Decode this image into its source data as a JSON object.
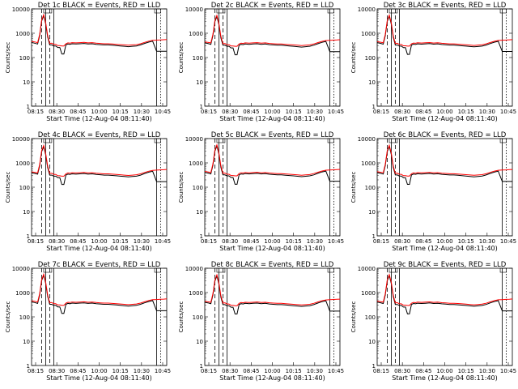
{
  "shared": {
    "ylabel": "Counts/sec",
    "xlabel": "Start Time (12-Aug-04 08:11:40)",
    "xticks": [
      "08:15",
      "08:30",
      "08:45",
      "10:00",
      "10:15",
      "10:30",
      "10:45"
    ],
    "yticks": [
      1,
      10,
      100,
      1000,
      10000
    ],
    "ylim": [
      1,
      10000
    ],
    "y_scale": "log",
    "colors": {
      "events": "#000000",
      "lld": "#ff0000"
    },
    "times_min": [
      0,
      3,
      6,
      8,
      10,
      12,
      14,
      16,
      18,
      20,
      22,
      24,
      26,
      28,
      30,
      32,
      34,
      36,
      38,
      40,
      44,
      48,
      52,
      56,
      60,
      64,
      68,
      72,
      76,
      80,
      84,
      88,
      92,
      96,
      100,
      104,
      108,
      112,
      116,
      120,
      124,
      128,
      131,
      134
    ]
  },
  "chart_data": [
    {
      "type": "line",
      "title": "Det 1c BLACK = Events, RED = LLD",
      "series": [
        {
          "name": "BLACK = Events",
          "color": "#000000",
          "values": [
            420,
            390,
            360,
            800,
            3200,
            5200,
            2500,
            700,
            330,
            330,
            300,
            300,
            260,
            260,
            140,
            140,
            330,
            360,
            350,
            370,
            360,
            370,
            380,
            360,
            370,
            350,
            340,
            330,
            330,
            320,
            310,
            300,
            290,
            280,
            290,
            300,
            330,
            380,
            430,
            470,
            180,
            180,
            180,
            180
          ]
        },
        {
          "name": "RED = LLD",
          "color": "#ff0000",
          "values": [
            460,
            440,
            410,
            900,
            3500,
            5800,
            2800,
            800,
            380,
            390,
            350,
            350,
            310,
            310,
            300,
            300,
            370,
            400,
            390,
            410,
            400,
            410,
            420,
            400,
            410,
            390,
            380,
            370,
            370,
            360,
            350,
            340,
            330,
            320,
            330,
            340,
            370,
            420,
            470,
            510,
            520,
            530,
            540,
            550
          ]
        }
      ]
    },
    {
      "type": "line",
      "title": "Det 2c BLACK = Events, RED = LLD",
      "series": [
        {
          "name": "BLACK = Events",
          "color": "#000000",
          "values": [
            400,
            380,
            350,
            780,
            3000,
            4800,
            2300,
            650,
            320,
            320,
            290,
            290,
            250,
            250,
            130,
            130,
            320,
            350,
            340,
            360,
            350,
            360,
            370,
            350,
            360,
            340,
            330,
            320,
            320,
            310,
            300,
            290,
            280,
            270,
            280,
            290,
            320,
            370,
            420,
            460,
            175,
            175,
            175,
            175
          ]
        },
        {
          "name": "RED = LLD",
          "color": "#ff0000",
          "values": [
            440,
            420,
            400,
            880,
            3300,
            5400,
            2600,
            760,
            370,
            380,
            340,
            340,
            300,
            300,
            290,
            290,
            360,
            390,
            380,
            400,
            390,
            400,
            410,
            390,
            400,
            380,
            370,
            360,
            360,
            350,
            340,
            330,
            320,
            310,
            320,
            330,
            360,
            410,
            460,
            500,
            510,
            520,
            530,
            540
          ]
        }
      ]
    },
    {
      "type": "line",
      "title": "Det 3c BLACK = Events, RED = LLD",
      "series": [
        {
          "name": "BLACK = Events",
          "color": "#000000",
          "values": [
            410,
            385,
            355,
            790,
            3100,
            5000,
            2400,
            680,
            325,
            325,
            295,
            295,
            255,
            255,
            135,
            135,
            325,
            355,
            345,
            365,
            355,
            365,
            375,
            355,
            365,
            345,
            335,
            325,
            325,
            315,
            305,
            295,
            285,
            275,
            285,
            295,
            325,
            375,
            425,
            465,
            178,
            178,
            178,
            178
          ]
        },
        {
          "name": "RED = LLD",
          "color": "#ff0000",
          "values": [
            450,
            430,
            405,
            890,
            3400,
            5600,
            2700,
            780,
            375,
            385,
            345,
            345,
            305,
            305,
            295,
            295,
            365,
            395,
            385,
            405,
            395,
            405,
            415,
            395,
            405,
            385,
            375,
            365,
            365,
            355,
            345,
            335,
            325,
            315,
            325,
            335,
            365,
            415,
            465,
            505,
            515,
            525,
            535,
            545
          ]
        }
      ]
    },
    {
      "type": "line",
      "title": "Det 4c BLACK = Events, RED = LLD",
      "series": [
        {
          "name": "BLACK = Events",
          "color": "#000000",
          "values": [
            390,
            370,
            345,
            760,
            2900,
            4600,
            2200,
            640,
            315,
            315,
            285,
            285,
            245,
            245,
            130,
            130,
            315,
            345,
            335,
            355,
            345,
            355,
            365,
            345,
            355,
            335,
            325,
            315,
            315,
            305,
            295,
            285,
            275,
            265,
            275,
            285,
            315,
            365,
            415,
            455,
            170,
            170,
            170,
            170
          ]
        },
        {
          "name": "RED = LLD",
          "color": "#ff0000",
          "values": [
            430,
            410,
            390,
            860,
            3200,
            5200,
            2500,
            740,
            365,
            375,
            335,
            335,
            295,
            295,
            285,
            285,
            355,
            385,
            375,
            395,
            385,
            395,
            405,
            385,
            395,
            375,
            365,
            355,
            355,
            345,
            335,
            325,
            315,
            305,
            315,
            325,
            355,
            405,
            455,
            495,
            505,
            515,
            525,
            535
          ]
        }
      ]
    },
    {
      "type": "line",
      "title": "Det 5c BLACK = Events, RED = LLD",
      "series": [
        {
          "name": "BLACK = Events",
          "color": "#000000",
          "values": [
            405,
            382,
            352,
            785,
            3050,
            4900,
            2350,
            660,
            322,
            322,
            292,
            292,
            252,
            252,
            132,
            132,
            322,
            352,
            342,
            362,
            352,
            362,
            372,
            352,
            362,
            342,
            332,
            322,
            322,
            312,
            302,
            292,
            282,
            272,
            282,
            292,
            322,
            372,
            422,
            462,
            176,
            176,
            176,
            176
          ]
        },
        {
          "name": "RED = LLD",
          "color": "#ff0000",
          "values": [
            445,
            425,
            402,
            885,
            3350,
            5500,
            2650,
            770,
            372,
            382,
            342,
            342,
            302,
            302,
            292,
            292,
            362,
            392,
            382,
            402,
            392,
            402,
            412,
            392,
            402,
            382,
            372,
            362,
            362,
            352,
            342,
            332,
            322,
            312,
            322,
            332,
            362,
            412,
            462,
            502,
            512,
            522,
            532,
            542
          ]
        }
      ]
    },
    {
      "type": "line",
      "title": "Det 6c BLACK = Events, RED = LLD",
      "series": [
        {
          "name": "BLACK = Events",
          "color": "#000000",
          "values": [
            395,
            375,
            348,
            770,
            2950,
            4700,
            2250,
            645,
            318,
            318,
            288,
            288,
            248,
            248,
            131,
            131,
            318,
            348,
            338,
            358,
            348,
            358,
            368,
            348,
            358,
            338,
            328,
            318,
            318,
            308,
            298,
            288,
            278,
            268,
            278,
            288,
            318,
            368,
            418,
            458,
            172,
            172,
            172,
            172
          ]
        },
        {
          "name": "RED = LLD",
          "color": "#ff0000",
          "values": [
            435,
            415,
            395,
            870,
            3250,
            5300,
            2550,
            750,
            368,
            378,
            338,
            338,
            298,
            298,
            288,
            288,
            358,
            388,
            378,
            398,
            388,
            398,
            408,
            388,
            398,
            378,
            368,
            358,
            358,
            348,
            338,
            328,
            318,
            308,
            318,
            328,
            358,
            408,
            458,
            498,
            508,
            518,
            528,
            538
          ]
        }
      ]
    },
    {
      "type": "line",
      "title": "Det 7c BLACK = Events, RED = LLD",
      "series": [
        {
          "name": "BLACK = Events",
          "color": "#000000",
          "values": [
            415,
            388,
            358,
            795,
            3150,
            5100,
            2450,
            690,
            328,
            328,
            298,
            298,
            258,
            258,
            138,
            138,
            328,
            358,
            348,
            368,
            358,
            368,
            378,
            358,
            368,
            348,
            338,
            328,
            328,
            318,
            308,
            298,
            288,
            278,
            288,
            298,
            328,
            378,
            428,
            468,
            179,
            179,
            179,
            179
          ]
        },
        {
          "name": "RED = LLD",
          "color": "#ff0000",
          "values": [
            455,
            435,
            408,
            895,
            3450,
            5700,
            2750,
            790,
            378,
            388,
            348,
            348,
            308,
            308,
            298,
            298,
            368,
            398,
            388,
            408,
            398,
            408,
            418,
            398,
            408,
            388,
            378,
            368,
            368,
            358,
            348,
            338,
            328,
            318,
            328,
            338,
            368,
            418,
            468,
            508,
            518,
            528,
            538,
            548
          ]
        }
      ]
    },
    {
      "type": "line",
      "title": "Det 8c BLACK = Events, RED = LLD",
      "series": [
        {
          "name": "BLACK = Events",
          "color": "#000000",
          "values": [
            398,
            378,
            350,
            775,
            2980,
            4750,
            2280,
            648,
            319,
            319,
            289,
            289,
            249,
            249,
            132,
            132,
            319,
            349,
            339,
            359,
            349,
            359,
            369,
            349,
            359,
            339,
            329,
            319,
            319,
            309,
            299,
            289,
            279,
            269,
            279,
            289,
            319,
            369,
            419,
            459,
            173,
            173,
            173,
            173
          ]
        },
        {
          "name": "RED = LLD",
          "color": "#ff0000",
          "values": [
            438,
            418,
            398,
            875,
            3280,
            5350,
            2580,
            755,
            369,
            379,
            339,
            339,
            299,
            299,
            289,
            289,
            359,
            389,
            379,
            399,
            389,
            399,
            409,
            389,
            399,
            379,
            369,
            359,
            359,
            349,
            339,
            329,
            319,
            309,
            319,
            329,
            359,
            409,
            459,
            499,
            509,
            519,
            529,
            539
          ]
        }
      ]
    },
    {
      "type": "line",
      "title": "Det 9c BLACK = Events, RED = LLD",
      "series": [
        {
          "name": "BLACK = Events",
          "color": "#000000",
          "values": [
            408,
            384,
            354,
            788,
            3080,
            4950,
            2380,
            670,
            324,
            324,
            294,
            294,
            254,
            254,
            134,
            134,
            324,
            354,
            344,
            364,
            354,
            364,
            374,
            354,
            364,
            344,
            334,
            324,
            324,
            314,
            304,
            294,
            284,
            274,
            284,
            294,
            324,
            374,
            424,
            464,
            177,
            177,
            177,
            177
          ]
        },
        {
          "name": "RED = LLD",
          "color": "#ff0000",
          "values": [
            448,
            428,
            404,
            888,
            3380,
            5550,
            2680,
            775,
            374,
            384,
            344,
            344,
            304,
            304,
            294,
            294,
            364,
            394,
            384,
            404,
            394,
            404,
            414,
            394,
            404,
            384,
            374,
            364,
            364,
            354,
            344,
            334,
            324,
            314,
            324,
            334,
            364,
            414,
            464,
            504,
            514,
            524,
            534,
            544
          ]
        }
      ]
    }
  ]
}
